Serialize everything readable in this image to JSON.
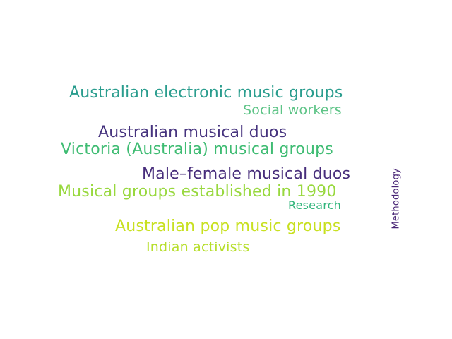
{
  "words": [
    {
      "text": "Australian electronic music groups",
      "color": "#2a9d8e"
    },
    {
      "text": "Social workers",
      "color": "#5ec487"
    },
    {
      "text": "Australian musical duos",
      "color": "#46337e"
    },
    {
      "text": "Victoria (Australia) musical groups",
      "color": "#3fbc73"
    },
    {
      "text": "Male–female musical duos",
      "color": "#472d7b"
    },
    {
      "text": "Musical groups established in 1990",
      "color": "#98d83e"
    },
    {
      "text": "Research",
      "color": "#31b57b"
    },
    {
      "text": "Australian pop music groups",
      "color": "#c8e020"
    },
    {
      "text": "Indian activists",
      "color": "#b6de2b"
    },
    {
      "text": "Methodology",
      "color": "#482475"
    }
  ]
}
